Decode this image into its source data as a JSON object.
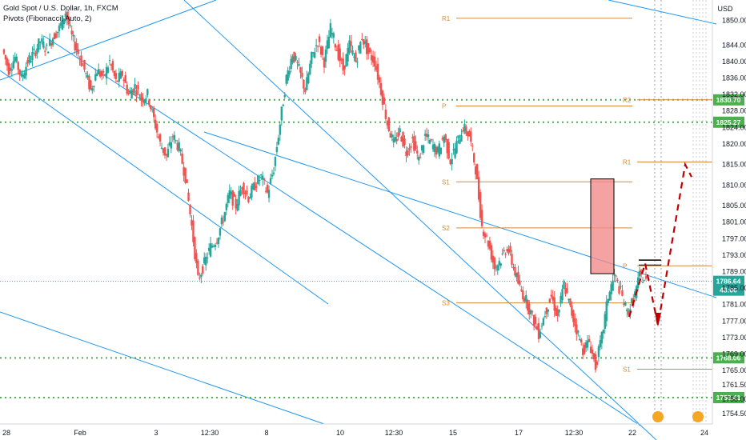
{
  "header": {
    "title": "Gold Spot / U.S. Dollar, 1h, FXCM",
    "indicator": "Pivots (Fibonacci, Auto, 2)"
  },
  "currency_label": "USD",
  "colors": {
    "up": "#26a69a",
    "down": "#ef5350",
    "level_green": "#4caf50",
    "pivot": "#d48a3c",
    "trendline": "#2196f3",
    "current_tag": "#26a69a",
    "box_fill": "#f28b8b",
    "projection": "#c00000"
  },
  "chart_data": {
    "type": "candlestick",
    "symbol": "XAUUSD",
    "timeframe": "1h",
    "ylim": [
      1752,
      1853
    ],
    "y_ticks": [
      1850,
      1844,
      1840,
      1836,
      1832,
      1828,
      1824,
      1820,
      1815,
      1810,
      1805,
      1801,
      1797,
      1793,
      1789,
      1785,
      1781,
      1777,
      1773,
      1769,
      1765,
      1761.5,
      1758,
      1754.5
    ],
    "x_tick_labels": [
      "28",
      "Feb",
      "3",
      "12:30",
      "8",
      "10",
      "12:30",
      "15",
      "17",
      "12:30",
      "22",
      "24"
    ],
    "current_price": 1786.64,
    "countdown": "48:06",
    "horizontal_levels": [
      {
        "label": "1830.70",
        "value": 1830.7
      },
      {
        "label": "1825.27",
        "value": 1825.27
      },
      {
        "label": "1768.06",
        "value": 1768.06
      },
      {
        "label": "1758.41",
        "value": 1758.41
      }
    ],
    "pivot_sets": [
      {
        "levels": [
          {
            "name": "R1",
            "value": 1850.5
          },
          {
            "name": "P",
            "value": 1829.2
          },
          {
            "name": "S1",
            "value": 1810.8
          },
          {
            "name": "S2",
            "value": 1799.6
          },
          {
            "name": "S3",
            "value": 1781.4
          }
        ]
      },
      {
        "levels": [
          {
            "name": "R2",
            "value": 1830.7
          },
          {
            "name": "R1",
            "value": 1815.6
          },
          {
            "name": "P",
            "value": 1790.4
          },
          {
            "name": "S1",
            "value": 1765.3
          }
        ]
      }
    ],
    "bars_close_path": [
      1843,
      1838,
      1841,
      1836,
      1840,
      1842,
      1845,
      1843,
      1846,
      1848,
      1852,
      1846,
      1842,
      1838,
      1833,
      1838,
      1836,
      1840,
      1835,
      1837,
      1832,
      1834,
      1831,
      1832,
      1826,
      1820,
      1817,
      1822,
      1819,
      1812,
      1800,
      1787,
      1791,
      1795,
      1797,
      1802,
      1808,
      1805,
      1810,
      1807,
      1810,
      1812,
      1808,
      1814,
      1825,
      1836,
      1842,
      1838,
      1833,
      1841,
      1845,
      1840,
      1848,
      1843,
      1838,
      1844,
      1840,
      1846,
      1842,
      1840,
      1833,
      1825,
      1820,
      1823,
      1818,
      1821,
      1816,
      1822,
      1820,
      1818,
      1822,
      1816,
      1820,
      1824,
      1822,
      1814,
      1800,
      1796,
      1790,
      1792,
      1795,
      1790,
      1785,
      1782,
      1778,
      1774,
      1779,
      1783,
      1778,
      1786,
      1780,
      1775,
      1770,
      1772,
      1766,
      1773,
      1783,
      1788,
      1784,
      1779,
      1782,
      1788,
      1786.64
    ],
    "projection_path": [
      1791,
      1776,
      1815
    ]
  }
}
